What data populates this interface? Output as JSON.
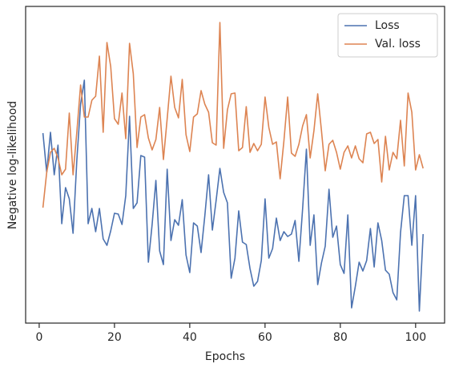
{
  "chart_data": {
    "type": "line",
    "x_label": "Epochs",
    "y_label": "Negative log-likelihood",
    "x": [
      1,
      2,
      3,
      4,
      5,
      6,
      7,
      8,
      9,
      10,
      11,
      12,
      13,
      14,
      15,
      16,
      17,
      18,
      19,
      20,
      21,
      22,
      23,
      24,
      25,
      26,
      27,
      28,
      29,
      30,
      31,
      32,
      33,
      34,
      35,
      36,
      37,
      38,
      39,
      40,
      41,
      42,
      43,
      44,
      45,
      46,
      47,
      48,
      49,
      50,
      51,
      52,
      53,
      54,
      55,
      56,
      57,
      58,
      59,
      60,
      61,
      62,
      63,
      64,
      65,
      66,
      67,
      68,
      69,
      70,
      71,
      72,
      73,
      74,
      75,
      76,
      77,
      78,
      79,
      80,
      81,
      82,
      83,
      84,
      85,
      86,
      87,
      88,
      89,
      90,
      91,
      92,
      93,
      94,
      95,
      96,
      97,
      98,
      99,
      100,
      101,
      102
    ],
    "series": [
      {
        "name": "Loss",
        "color": "#4c72b0",
        "values": [
          237,
          188,
          238,
          185,
          222,
          124,
          169,
          155,
          112,
          203,
          273,
          303,
          124,
          143,
          114,
          143,
          105,
          97,
          115,
          137,
          136,
          123,
          159,
          258,
          143,
          150,
          209,
          207,
          76,
          123,
          178,
          90,
          73,
          192,
          103,
          129,
          122,
          154,
          85,
          63,
          125,
          121,
          88,
          134,
          185,
          116,
          153,
          193,
          163,
          150,
          56,
          81,
          140,
          101,
          98,
          68,
          46,
          52,
          78,
          155,
          81,
          93,
          131,
          103,
          114,
          108,
          111,
          128,
          77,
          143,
          217,
          97,
          135,
          48,
          75,
          96,
          167,
          107,
          121,
          73,
          62,
          135,
          19,
          46,
          76,
          65,
          78,
          118,
          70,
          125,
          103,
          66,
          61,
          38,
          29,
          113,
          159,
          159,
          97,
          159,
          15,
          111
        ]
      },
      {
        "name": "Val. loss",
        "color": "#dd8452",
        "values": [
          144,
          188,
          213,
          218,
          206,
          185,
          192,
          262,
          185,
          238,
          297,
          257,
          257,
          278,
          283,
          333,
          238,
          350,
          320,
          255,
          248,
          287,
          230,
          349,
          311,
          219,
          257,
          260,
          231,
          216,
          229,
          269,
          204,
          255,
          308,
          269,
          256,
          304,
          235,
          214,
          257,
          261,
          290,
          273,
          263,
          225,
          222,
          375,
          218,
          266,
          286,
          287,
          215,
          219,
          270,
          213,
          224,
          215,
          223,
          282,
          244,
          223,
          226,
          180,
          227,
          282,
          212,
          208,
          223,
          246,
          260,
          206,
          240,
          286,
          240,
          190,
          223,
          228,
          213,
          192,
          213,
          221,
          206,
          221,
          205,
          200,
          236,
          238,
          224,
          229,
          176,
          233,
          191,
          213,
          205,
          253,
          196,
          287,
          263,
          191,
          210,
          193
        ]
      }
    ],
    "xlim": [
      -3.6,
      107.7
    ],
    "xticks": [
      0,
      20,
      40,
      60,
      80,
      100
    ],
    "ylim": [
      0,
      395
    ],
    "legend": "upper right"
  }
}
